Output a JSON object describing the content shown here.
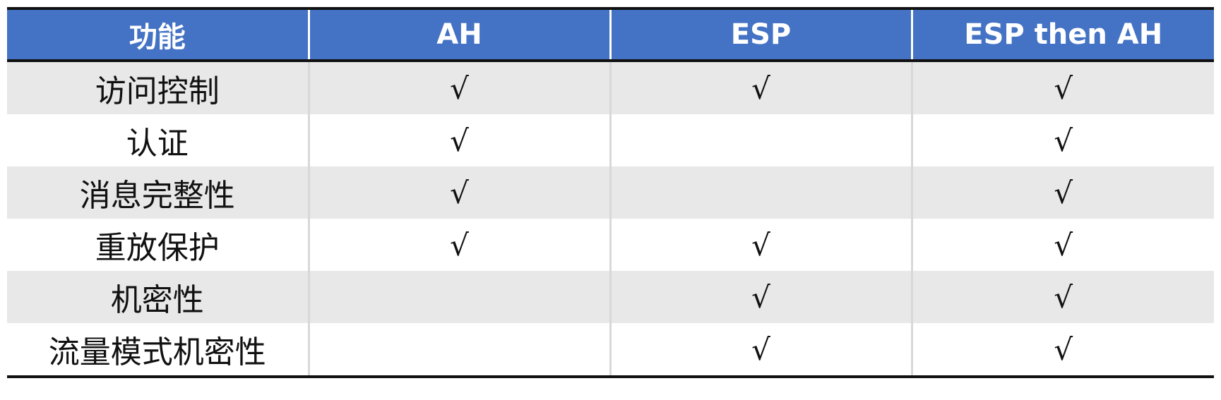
{
  "table": {
    "headers": [
      "功能",
      "AH",
      "ESP",
      "ESP then AH"
    ],
    "check_symbol": "√",
    "rows": [
      {
        "feature": "访问控制",
        "ah": "√",
        "esp": "√",
        "esp_then_ah": "√"
      },
      {
        "feature": "认证",
        "ah": "√",
        "esp": "",
        "esp_then_ah": "√"
      },
      {
        "feature": "消息完整性",
        "ah": "√",
        "esp": "",
        "esp_then_ah": "√"
      },
      {
        "feature": "重放保护",
        "ah": "√",
        "esp": "√",
        "esp_then_ah": "√"
      },
      {
        "feature": "机密性",
        "ah": "",
        "esp": "√",
        "esp_then_ah": "√"
      },
      {
        "feature": "流量模式机密性",
        "ah": "",
        "esp": "√",
        "esp_then_ah": "√"
      }
    ]
  },
  "colors": {
    "header_bg": "#4472c4",
    "header_text": "#ffffff",
    "row_alt_bg": "#e8e8e8",
    "row_bg": "#ffffff",
    "rule": "#111111"
  }
}
